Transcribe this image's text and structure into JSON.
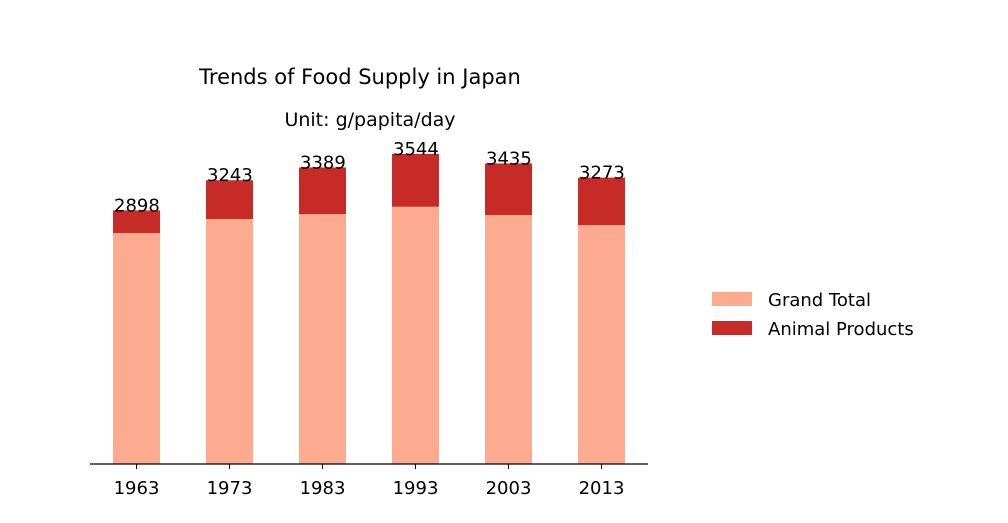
{
  "chart_data": {
    "type": "bar",
    "stacked": true,
    "title": "Trends of Food Supply in Japan",
    "subtitle": "Unit: g/papita/day",
    "xlabel": "",
    "ylabel": "",
    "categories": [
      "1963",
      "1973",
      "1983",
      "1993",
      "2003",
      "2013"
    ],
    "series": [
      {
        "name": "Grand Total",
        "color": "#fcab91",
        "values": [
          2640,
          2800,
          2855,
          2940,
          2845,
          2730
        ]
      },
      {
        "name": "Animal Products",
        "color": "#c62b27",
        "values": [
          258,
          443,
          534,
          604,
          590,
          543
        ]
      }
    ],
    "totals": [
      2898,
      3243,
      3389,
      3544,
      3435,
      3273
    ],
    "ylim": [
      0,
      3600
    ],
    "y_axis_visible": false,
    "grid": false,
    "legend_position": "right"
  }
}
